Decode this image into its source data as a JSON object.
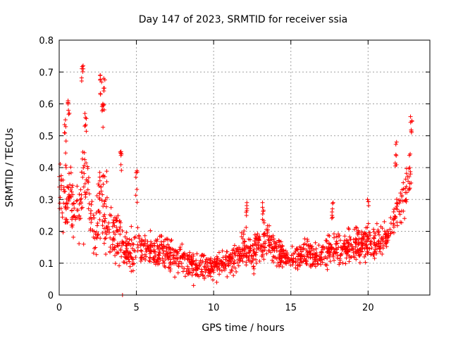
{
  "chart_data": {
    "type": "scatter",
    "title": "Day 147 of 2023, SRMTID for receiver ssia",
    "xlabel": "GPS time / hours",
    "ylabel": "SRMTID / TECUs",
    "xlim": [
      0,
      24
    ],
    "ylim": [
      0,
      0.8
    ],
    "xticks": [
      0,
      5,
      10,
      15,
      20
    ],
    "xtick_labels": [
      "0",
      "5",
      "10",
      "15",
      "20"
    ],
    "yticks": [
      0,
      0.1,
      0.2,
      0.3,
      0.4,
      0.5,
      0.6,
      0.7,
      0.8
    ],
    "ytick_labels": [
      "0",
      "0.1",
      "0.2",
      "0.3",
      "0.4",
      "0.5",
      "0.6",
      "0.7",
      "0.8"
    ],
    "grid": true,
    "legend": false,
    "marker": "+",
    "colors": {
      "series": "#ff0000",
      "grid": "#a0a0a0",
      "axis": "#000000"
    },
    "series": [
      {
        "name": "SRMTID",
        "note": "Dense cloud of measurements; representative envelope (x in hours, y in TECU)",
        "envelope": {
          "x": [
            0,
            0.3,
            0.6,
            0.9,
            1.2,
            1.5,
            1.8,
            2.1,
            2.4,
            2.7,
            3.0,
            3.3,
            3.6,
            3.9,
            4.2,
            4.5,
            4.8,
            5.1,
            5.5,
            6.0,
            6.5,
            7.0,
            7.5,
            8.0,
            8.5,
            9.0,
            9.5,
            10.0,
            10.5,
            11.0,
            11.5,
            12.0,
            12.5,
            13.0,
            13.5,
            14.0,
            14.5,
            15.0,
            15.5,
            16.0,
            16.5,
            17.0,
            17.5,
            18.0,
            18.5,
            19.0,
            19.5,
            20.0,
            20.5,
            21.0,
            21.3,
            21.6,
            21.9,
            22.2,
            22.5,
            22.8
          ],
          "center": [
            0.34,
            0.32,
            0.31,
            0.28,
            0.26,
            0.35,
            0.33,
            0.22,
            0.2,
            0.3,
            0.28,
            0.2,
            0.18,
            0.17,
            0.14,
            0.15,
            0.14,
            0.15,
            0.15,
            0.14,
            0.14,
            0.13,
            0.12,
            0.11,
            0.1,
            0.09,
            0.09,
            0.09,
            0.1,
            0.11,
            0.12,
            0.14,
            0.13,
            0.16,
            0.17,
            0.14,
            0.12,
            0.12,
            0.12,
            0.13,
            0.12,
            0.13,
            0.14,
            0.15,
            0.15,
            0.15,
            0.16,
            0.17,
            0.16,
            0.19,
            0.18,
            0.21,
            0.25,
            0.3,
            0.33,
            0.38
          ],
          "spread": [
            0.1,
            0.1,
            0.12,
            0.1,
            0.1,
            0.14,
            0.13,
            0.1,
            0.08,
            0.16,
            0.14,
            0.09,
            0.08,
            0.1,
            0.06,
            0.06,
            0.08,
            0.05,
            0.04,
            0.05,
            0.05,
            0.05,
            0.05,
            0.04,
            0.04,
            0.03,
            0.04,
            0.03,
            0.04,
            0.04,
            0.05,
            0.05,
            0.05,
            0.06,
            0.06,
            0.05,
            0.04,
            0.04,
            0.04,
            0.04,
            0.04,
            0.04,
            0.05,
            0.05,
            0.05,
            0.05,
            0.05,
            0.05,
            0.05,
            0.06,
            0.05,
            0.06,
            0.08,
            0.08,
            0.09,
            0.1
          ]
        },
        "peaks": [
          {
            "x": 1.5,
            "y": 0.72
          },
          {
            "x": 1.7,
            "y": 0.57
          },
          {
            "x": 0.6,
            "y": 0.61
          },
          {
            "x": 0.4,
            "y": 0.55
          },
          {
            "x": 2.7,
            "y": 0.69
          },
          {
            "x": 2.9,
            "y": 0.68
          },
          {
            "x": 2.8,
            "y": 0.6
          },
          {
            "x": 4.0,
            "y": 0.45
          },
          {
            "x": 5.0,
            "y": 0.39
          },
          {
            "x": 12.1,
            "y": 0.29
          },
          {
            "x": 13.2,
            "y": 0.29
          },
          {
            "x": 17.7,
            "y": 0.29
          },
          {
            "x": 20.0,
            "y": 0.3
          },
          {
            "x": 21.8,
            "y": 0.48
          },
          {
            "x": 22.8,
            "y": 0.56
          }
        ],
        "outliers": [
          {
            "x": 4.1,
            "y": 0.0
          },
          {
            "x": 8.7,
            "y": 0.03
          },
          {
            "x": 10.2,
            "y": 0.04
          }
        ]
      }
    ]
  }
}
